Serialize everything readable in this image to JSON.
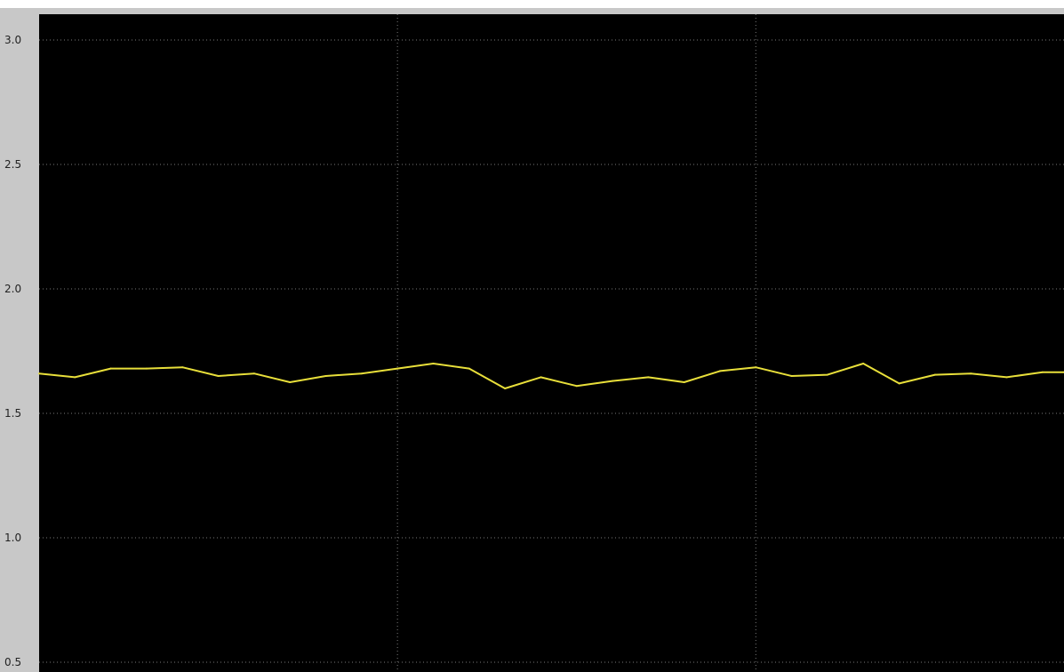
{
  "chart_data": {
    "type": "line",
    "title": "",
    "xlabel": "",
    "ylabel": "",
    "ylim": [
      0.5,
      3.1
    ],
    "yticks": [
      "3.0",
      "2.5",
      "2.0",
      "1.5",
      "1.0",
      "0.5"
    ],
    "ytick_values": [
      3.0,
      2.5,
      2.0,
      1.5,
      1.0,
      0.5
    ],
    "x_gridlines": [
      10,
      20
    ],
    "xlim": [
      0,
      28.6
    ],
    "grid": true,
    "series": [
      {
        "color": "#e8df3a",
        "x": [
          0,
          1,
          2,
          3,
          4,
          5,
          6,
          7,
          8,
          9,
          10,
          11,
          12,
          13,
          14,
          15,
          16,
          17,
          18,
          19,
          20,
          21,
          22,
          23,
          24,
          25,
          26,
          27,
          28,
          28.6
        ],
        "values": [
          1.66,
          1.645,
          1.68,
          1.68,
          1.685,
          1.65,
          1.66,
          1.625,
          1.65,
          1.66,
          1.68,
          1.7,
          1.68,
          1.6,
          1.645,
          1.61,
          1.63,
          1.645,
          1.625,
          1.67,
          1.685,
          1.65,
          1.655,
          1.7,
          1.62,
          1.655,
          1.66,
          1.645,
          1.665,
          1.665
        ]
      }
    ]
  },
  "colors": {
    "frame_background": "#c8c8c8",
    "plot_background": "#000000",
    "grid": "#7a7a7a",
    "line": "#e8df3a"
  }
}
